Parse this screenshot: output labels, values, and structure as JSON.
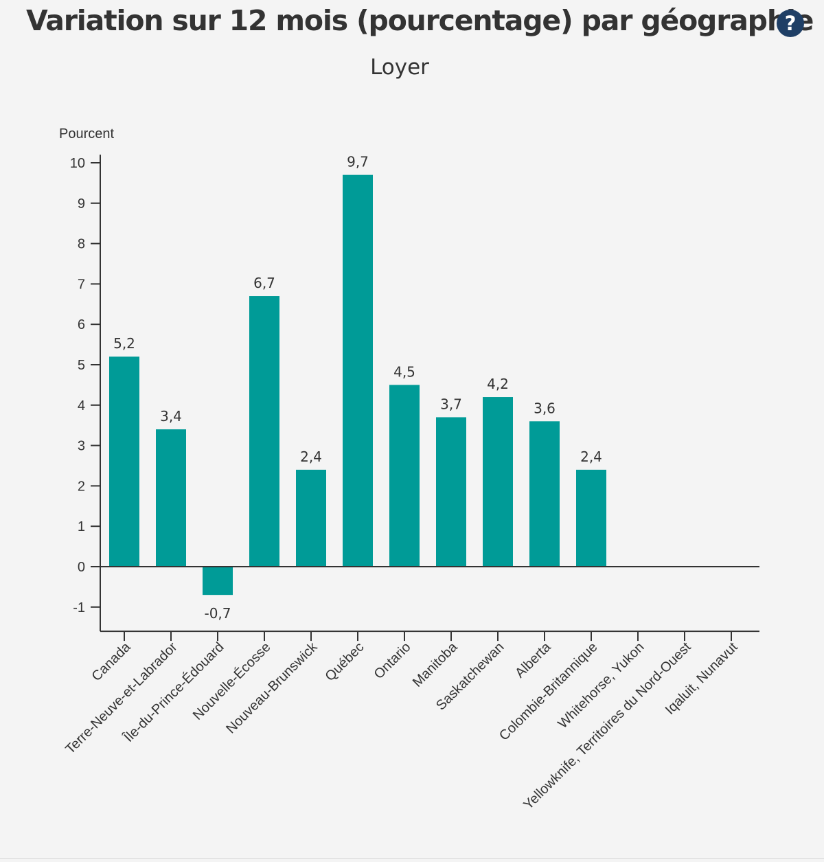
{
  "header": {
    "title": "Variation sur 12 mois (pourcentage) par géographie",
    "help_icon": "question-circle-icon",
    "help_label": "?"
  },
  "colors": {
    "bar": "#009b97",
    "axis": "#333333",
    "text": "#333333",
    "help": "#1f3f66"
  },
  "chart_data": {
    "type": "bar",
    "subtitle": "Loyer",
    "ylabel": "Pourcent",
    "ylim": [
      -1.6,
      10.2
    ],
    "yticks": [
      10,
      9,
      8,
      7,
      6,
      5,
      4,
      3,
      2,
      1,
      0,
      -1
    ],
    "categories": [
      "Canada",
      "Terre-Neuve-et-Labrador",
      "Île-du-Prince-Édouard",
      "Nouvelle-Écosse",
      "Nouveau-Brunswick",
      "Québec",
      "Ontario",
      "Manitoba",
      "Saskatchewan",
      "Alberta",
      "Colombie-Britannique",
      "Whitehorse, Yukon",
      "Yellowknife, Territoires du Nord-Ouest",
      "Iqaluit, Nunavut"
    ],
    "values": [
      5.2,
      3.4,
      -0.7,
      6.7,
      2.4,
      9.7,
      4.5,
      3.7,
      4.2,
      3.6,
      2.4,
      null,
      null,
      null
    ],
    "value_labels": [
      "5,2",
      "3,4",
      "-0,7",
      "6,7",
      "2,4",
      "9,7",
      "4,5",
      "3,7",
      "4,2",
      "3,6",
      "2,4",
      "",
      "",
      ""
    ],
    "grid": false,
    "legend": "none"
  }
}
